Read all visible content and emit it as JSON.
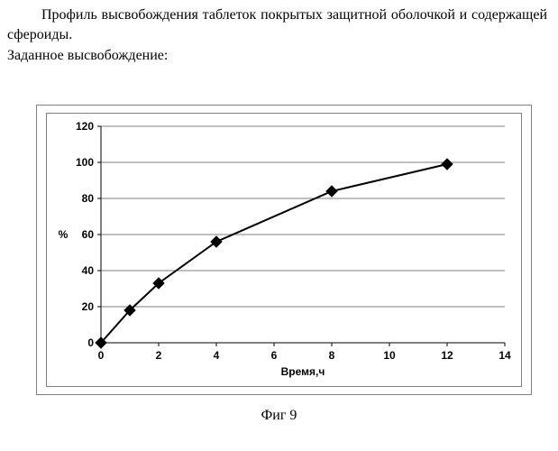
{
  "text": {
    "paragraph": "Профиль высвобождения таблеток покрытых защитной оболочкой и содержащей  сфероиды.",
    "subhead": "Заданное высвобождение:",
    "caption": "Фиг 9"
  },
  "chart": {
    "type": "line",
    "x": [
      0,
      1,
      2,
      4,
      8,
      12
    ],
    "y": [
      0,
      18,
      33,
      56,
      84,
      99
    ],
    "line_color": "#000000",
    "line_width": 2,
    "marker_color": "#000000",
    "marker_size": 6,
    "marker": "diamond",
    "xlim": [
      0,
      14
    ],
    "ylim": [
      0,
      120
    ],
    "xtick_step": 2,
    "ytick_step": 20,
    "xlabel": "Время,ч",
    "ylabel": "%",
    "grid_color": "#000000",
    "background_color": "#ffffff",
    "label_fontsize": 12,
    "tick_fontsize": 12,
    "tick_fontweight": "bold"
  }
}
